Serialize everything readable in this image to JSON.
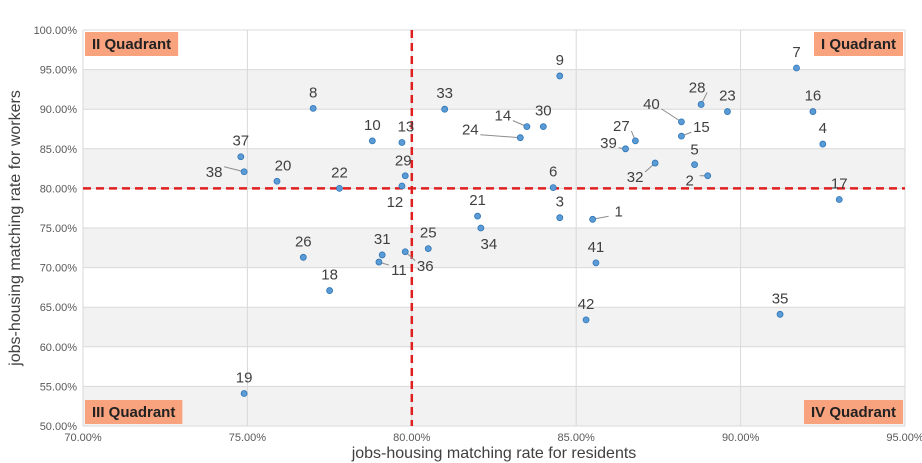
{
  "chart_data": {
    "type": "scatter",
    "title": "",
    "xlabel": "jobs-housing matching rate for residents",
    "ylabel": "jobs-housing matching rate for workers",
    "xlim": [
      0.7,
      0.95
    ],
    "ylim": [
      0.5,
      1.0
    ],
    "xticks": [
      {
        "v": 0.7,
        "label": "70.00%"
      },
      {
        "v": 0.75,
        "label": "75.00%"
      },
      {
        "v": 0.8,
        "label": "80.00%"
      },
      {
        "v": 0.85,
        "label": "85.00%"
      },
      {
        "v": 0.9,
        "label": "90.00%"
      },
      {
        "v": 0.95,
        "label": "95.00%"
      }
    ],
    "yticks": [
      {
        "v": 0.5,
        "label": "50.00%"
      },
      {
        "v": 0.55,
        "label": "55.00%"
      },
      {
        "v": 0.6,
        "label": "60.00%"
      },
      {
        "v": 0.65,
        "label": "65.00%"
      },
      {
        "v": 0.7,
        "label": "70.00%"
      },
      {
        "v": 0.75,
        "label": "75.00%"
      },
      {
        "v": 0.8,
        "label": "80.00%"
      },
      {
        "v": 0.85,
        "label": "85.00%"
      },
      {
        "v": 0.9,
        "label": "90.00%"
      },
      {
        "v": 0.95,
        "label": "95.00%"
      },
      {
        "v": 1.0,
        "label": "100.00%"
      }
    ],
    "grid": true,
    "threshold_x": 0.8,
    "threshold_y": 0.8,
    "quadrants": [
      {
        "label": "II Quadrant",
        "position": "top-left"
      },
      {
        "label": "I Quadrant",
        "position": "top-right"
      },
      {
        "label": "III Quadrant",
        "position": "bottom-left"
      },
      {
        "label": "IV Quadrant",
        "position": "bottom-right"
      }
    ],
    "points": [
      {
        "id": "1",
        "x": 0.855,
        "y": 0.761
      },
      {
        "id": "2",
        "x": 0.89,
        "y": 0.816
      },
      {
        "id": "3",
        "x": 0.845,
        "y": 0.763
      },
      {
        "id": "4",
        "x": 0.925,
        "y": 0.856
      },
      {
        "id": "5",
        "x": 0.886,
        "y": 0.83
      },
      {
        "id": "6",
        "x": 0.843,
        "y": 0.801
      },
      {
        "id": "7",
        "x": 0.917,
        "y": 0.952
      },
      {
        "id": "8",
        "x": 0.77,
        "y": 0.901
      },
      {
        "id": "9",
        "x": 0.845,
        "y": 0.942
      },
      {
        "id": "10",
        "x": 0.788,
        "y": 0.86
      },
      {
        "id": "11",
        "x": 0.79,
        "y": 0.707
      },
      {
        "id": "12",
        "x": 0.797,
        "y": 0.803
      },
      {
        "id": "13",
        "x": 0.797,
        "y": 0.858
      },
      {
        "id": "14",
        "x": 0.835,
        "y": 0.878
      },
      {
        "id": "15",
        "x": 0.882,
        "y": 0.866
      },
      {
        "id": "16",
        "x": 0.922,
        "y": 0.897
      },
      {
        "id": "17",
        "x": 0.93,
        "y": 0.786
      },
      {
        "id": "18",
        "x": 0.775,
        "y": 0.671
      },
      {
        "id": "19",
        "x": 0.749,
        "y": 0.541
      },
      {
        "id": "20",
        "x": 0.759,
        "y": 0.809
      },
      {
        "id": "21",
        "x": 0.82,
        "y": 0.765
      },
      {
        "id": "22",
        "x": 0.778,
        "y": 0.8
      },
      {
        "id": "23",
        "x": 0.896,
        "y": 0.897
      },
      {
        "id": "24",
        "x": 0.833,
        "y": 0.864
      },
      {
        "id": "25",
        "x": 0.805,
        "y": 0.724
      },
      {
        "id": "26",
        "x": 0.767,
        "y": 0.713
      },
      {
        "id": "27",
        "x": 0.868,
        "y": 0.86
      },
      {
        "id": "28",
        "x": 0.888,
        "y": 0.906
      },
      {
        "id": "29",
        "x": 0.798,
        "y": 0.816
      },
      {
        "id": "30",
        "x": 0.84,
        "y": 0.878
      },
      {
        "id": "31",
        "x": 0.791,
        "y": 0.716
      },
      {
        "id": "32",
        "x": 0.874,
        "y": 0.832
      },
      {
        "id": "33",
        "x": 0.81,
        "y": 0.9
      },
      {
        "id": "34",
        "x": 0.821,
        "y": 0.75
      },
      {
        "id": "35",
        "x": 0.912,
        "y": 0.641
      },
      {
        "id": "36",
        "x": 0.798,
        "y": 0.72
      },
      {
        "id": "37",
        "x": 0.748,
        "y": 0.84
      },
      {
        "id": "38",
        "x": 0.749,
        "y": 0.821
      },
      {
        "id": "39",
        "x": 0.865,
        "y": 0.85
      },
      {
        "id": "40",
        "x": 0.882,
        "y": 0.884
      },
      {
        "id": "41",
        "x": 0.856,
        "y": 0.706
      },
      {
        "id": "42",
        "x": 0.853,
        "y": 0.634
      }
    ],
    "colors": {
      "point_fill": "#5B9BD5",
      "point_stroke": "#2E75B6",
      "threshold": "#E02020",
      "quadrant_box": "#F8A37E",
      "gridline": "#D9D9D9",
      "band": "#F2F2F2",
      "leader": "#8C8C8C"
    }
  }
}
